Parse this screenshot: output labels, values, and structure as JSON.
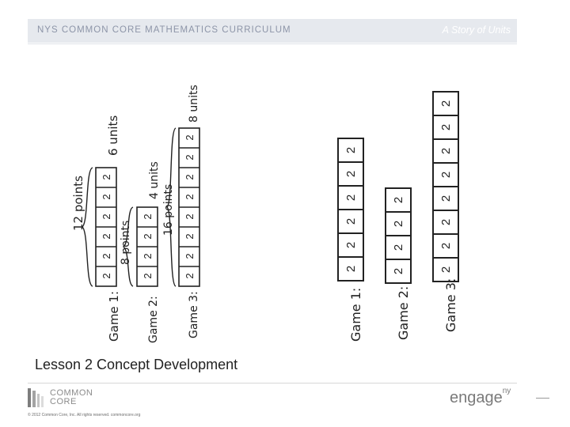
{
  "header": {
    "curriculum": "NYS COMMON CORE MATHEMATICS CURRICULUM",
    "series": "A Story of Units"
  },
  "left_drawing": {
    "games": [
      {
        "label": "Game 1:",
        "cell": "2",
        "total": "12 points",
        "units": "6 units"
      },
      {
        "label": "Game 2:",
        "cell": "2",
        "total": "8 points",
        "units": "4 units"
      },
      {
        "label": "Game 3:",
        "cell": "2",
        "total": "16 points",
        "units": "8 units"
      }
    ]
  },
  "right_drawing": {
    "games": [
      {
        "label": "Game 1:",
        "cell": "2"
      },
      {
        "label": "Game 2:",
        "cell": "2"
      },
      {
        "label": "Game 3:",
        "cell": "2"
      }
    ]
  },
  "lesson_title": "Lesson 2 Concept Development",
  "footer": {
    "logo_text_line1": "COMMON",
    "logo_text_line2": "CORE",
    "copyright": "© 2012 Common Core, Inc. All rights reserved. commoncore.org",
    "engage_text": "engage",
    "engage_sup": "ny"
  }
}
